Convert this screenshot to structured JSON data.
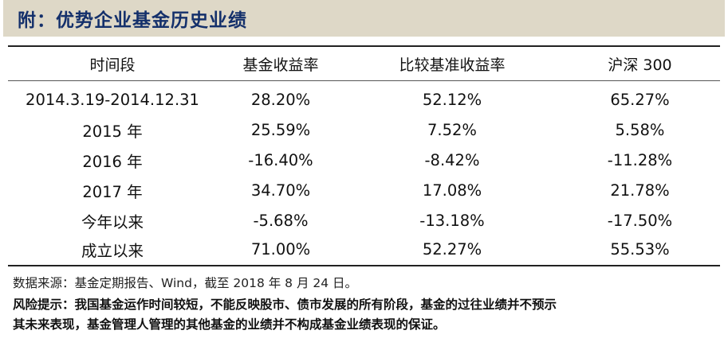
{
  "title": "附：优势企业基金历史业绩",
  "table": {
    "headers": [
      "时间段",
      "基金收益率",
      "比较基准收益率",
      "沪深 300"
    ],
    "rows": [
      [
        "2014.3.19-2014.12.31",
        "28.20%",
        "52.12%",
        "65.27%"
      ],
      [
        "2015 年",
        "25.59%",
        "7.52%",
        "5.58%"
      ],
      [
        "2016 年",
        "-16.40%",
        "-8.42%",
        "-11.28%"
      ],
      [
        "2017 年",
        "34.70%",
        "17.08%",
        "21.78%"
      ],
      [
        "今年以来",
        "-5.68%",
        "-13.18%",
        "-17.50%"
      ],
      [
        "成立以来",
        "71.00%",
        "52.27%",
        "55.53%"
      ]
    ]
  },
  "footer": {
    "source": "数据来源：基金定期报告、Wind，截至 2018 年 8 月 24 日。",
    "risk_line1": "风险提示：我国基金运作时间较短，不能反映股市、债市发展的所有阶段，基金的过往业绩并不预示",
    "risk_line2": "其未来表现，基金管理人管理的其他基金的业绩并不构成基金业绩表现的保证。"
  },
  "colors": {
    "title_bg": "#ded8c7",
    "title_text": "#14306b"
  }
}
